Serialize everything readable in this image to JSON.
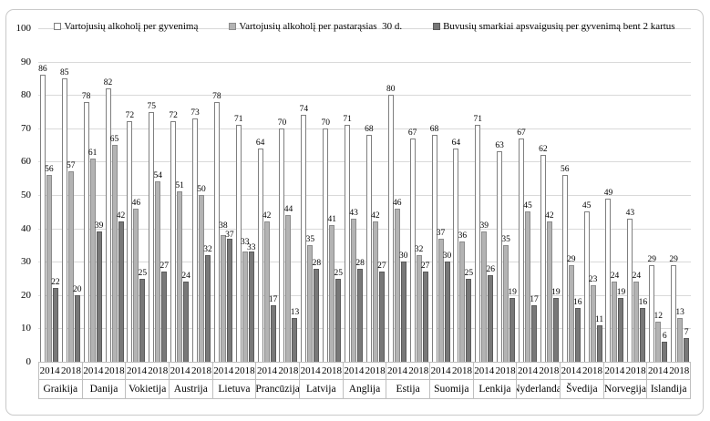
{
  "chart_data": {
    "type": "bar",
    "title": "",
    "xlabel": "",
    "ylabel": "",
    "ylim": [
      0,
      100
    ],
    "yticks": [
      0,
      10,
      20,
      30,
      40,
      50,
      60,
      70,
      80,
      90,
      100
    ],
    "grid": true,
    "legend_position": "top",
    "series": [
      {
        "name": "Vartojusių alkoholį per gyvenimą",
        "fill": "#ffffff",
        "border": "#7f7f7f"
      },
      {
        "name": "Vartojusių alkoholį per pastarąsias  30 d.",
        "fill": "#b3b3b3",
        "border": "#8c8c8c"
      },
      {
        "name": "Buvusių smarkiai apsvaigusių per gyvenimą bent 2 kartus",
        "fill": "#787878",
        "border": "#5a5a5a"
      }
    ],
    "year_labels": [
      "2014",
      "2018"
    ],
    "groups": [
      {
        "country": "Graikija",
        "years": [
          {
            "label": "2014",
            "values": [
              86,
              56,
              22
            ]
          },
          {
            "label": "2018",
            "values": [
              85,
              57,
              20
            ]
          }
        ]
      },
      {
        "country": "Danija",
        "years": [
          {
            "label": "2014",
            "values": [
              78,
              61,
              39
            ]
          },
          {
            "label": "2018",
            "values": [
              82,
              65,
              42
            ]
          }
        ]
      },
      {
        "country": "Vokietija",
        "years": [
          {
            "label": "2014",
            "values": [
              72,
              46,
              25
            ]
          },
          {
            "label": "2018",
            "values": [
              75,
              54,
              27
            ]
          }
        ]
      },
      {
        "country": "Austrija",
        "years": [
          {
            "label": "2014",
            "values": [
              72,
              51,
              24
            ]
          },
          {
            "label": "2018",
            "values": [
              73,
              50,
              32
            ]
          }
        ]
      },
      {
        "country": "Lietuva",
        "years": [
          {
            "label": "2014",
            "values": [
              78,
              38,
              37
            ]
          },
          {
            "label": "2018",
            "values": [
              71,
              33,
              33
            ]
          }
        ]
      },
      {
        "country": "Prancūzija",
        "years": [
          {
            "label": "2014",
            "values": [
              64,
              42,
              17
            ]
          },
          {
            "label": "2018",
            "values": [
              70,
              44,
              13
            ]
          }
        ]
      },
      {
        "country": "Latvija",
        "years": [
          {
            "label": "2014",
            "values": [
              74,
              35,
              28
            ]
          },
          {
            "label": "2018",
            "values": [
              70,
              41,
              25
            ]
          }
        ]
      },
      {
        "country": "Anglija",
        "years": [
          {
            "label": "2014",
            "values": [
              71,
              43,
              28
            ]
          },
          {
            "label": "2018",
            "values": [
              68,
              42,
              27
            ]
          }
        ]
      },
      {
        "country": "Estija",
        "years": [
          {
            "label": "2014",
            "values": [
              80,
              46,
              30
            ]
          },
          {
            "label": "2018",
            "values": [
              67,
              32,
              27
            ]
          }
        ]
      },
      {
        "country": "Suomija",
        "years": [
          {
            "label": "2014",
            "values": [
              68,
              37,
              30
            ]
          },
          {
            "label": "2018",
            "values": [
              64,
              36,
              25
            ]
          }
        ]
      },
      {
        "country": "Lenkija",
        "years": [
          {
            "label": "2014",
            "values": [
              71,
              39,
              26
            ]
          },
          {
            "label": "2018",
            "values": [
              63,
              35,
              19
            ]
          }
        ]
      },
      {
        "country": "Nyderlandai",
        "years": [
          {
            "label": "2014",
            "values": [
              67,
              45,
              17
            ]
          },
          {
            "label": "2018",
            "values": [
              62,
              42,
              19
            ]
          }
        ]
      },
      {
        "country": "Švedija",
        "years": [
          {
            "label": "2014",
            "values": [
              56,
              29,
              16
            ]
          },
          {
            "label": "2018",
            "values": [
              45,
              23,
              11
            ]
          }
        ]
      },
      {
        "country": "Norvegija",
        "years": [
          {
            "label": "2014",
            "values": [
              49,
              24,
              19
            ]
          },
          {
            "label": "2018",
            "values": [
              43,
              24,
              16
            ]
          }
        ]
      },
      {
        "country": "Islandija",
        "years": [
          {
            "label": "2014",
            "values": [
              29,
              12,
              6
            ]
          },
          {
            "label": "2018",
            "values": [
              29,
              13,
              7
            ]
          }
        ]
      }
    ],
    "colors": {
      "gridline": "#d9d9d9",
      "axis_line": "#bfbfbf",
      "frame_border": "#c9c9c9",
      "text": "#000000"
    }
  }
}
